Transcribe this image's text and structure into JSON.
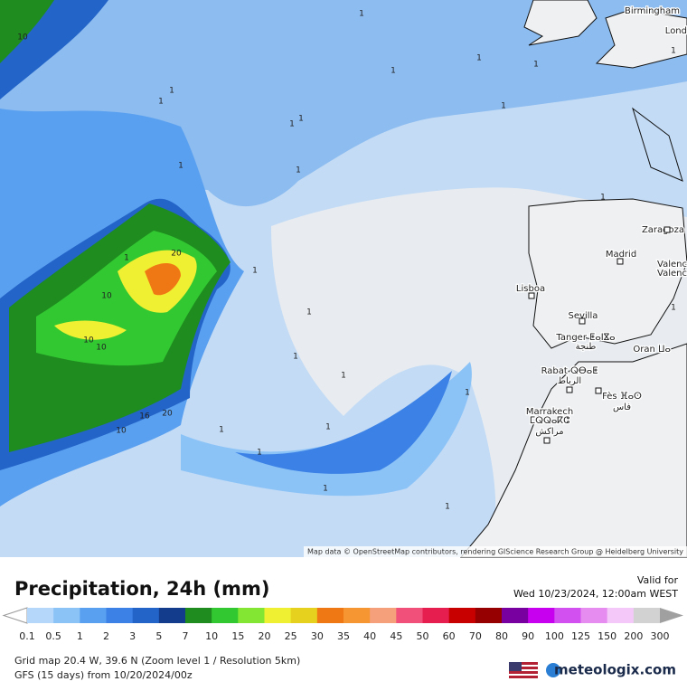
{
  "map": {
    "cities": [
      "Birmingham",
      "Lond",
      "Zaragoza",
      "Madrid",
      "Valenc",
      "Valenc",
      "Lisboa",
      "Sevilla",
      "Tanger ⵟⴰⵏⴵⴰ",
      "طنجة",
      "Oran ⵡⴰ",
      "Rabat ⵕⴱⴰⵟ",
      "الرباط",
      "Fès ⴼⴰⵙ",
      "فاس",
      "Marrakech",
      "ⵎⵕⵕⴰⴽⵛ",
      "مراكش"
    ],
    "contour_labels": [
      "10",
      "1",
      "1",
      "1",
      "1",
      "1",
      "1",
      "1",
      "1",
      "1",
      "1",
      "1",
      "1",
      "1",
      "1",
      "1",
      "1",
      "1",
      "1",
      "1",
      "1",
      "1",
      "1",
      "1",
      "20",
      "10",
      "10",
      "10",
      "20",
      "10",
      "16",
      "1",
      "1"
    ],
    "attribution": "Map data © OpenStreetMap contributors, rendering GIScience Research Group @ Heidelberg University"
  },
  "header": {
    "title": "Precipitation, 24h (mm)",
    "valid_label": "Valid for",
    "valid_time": "Wed 10/23/2024, 12:00am WEST"
  },
  "legend": {
    "labels": [
      "0.1",
      "0.5",
      "1",
      "2",
      "3",
      "5",
      "7",
      "10",
      "15",
      "20",
      "25",
      "30",
      "35",
      "40",
      "45",
      "50",
      "60",
      "70",
      "80",
      "90",
      "100",
      "125",
      "150",
      "200",
      "300"
    ],
    "colors": [
      "#ffffff",
      "#b4d7fa",
      "#8cc3f7",
      "#5aa0f0",
      "#3c82e6",
      "#2364c8",
      "#143c8c",
      "#1e8c1e",
      "#32c832",
      "#82e632",
      "#f0f032",
      "#e6d21e",
      "#f07814",
      "#f59632",
      "#f5a07a",
      "#f0507a",
      "#e61e50",
      "#c80000",
      "#960000",
      "#7800a0",
      "#c800f0",
      "#d250f0",
      "#e68cf0",
      "#f5c8fa",
      "#d2d2d2",
      "#a0a0a0"
    ]
  },
  "footer": {
    "grid_info": "Grid map 20.4 W, 39.6 N (Zoom level 1 / Resolution 5km)",
    "model_info": "GFS (15 days) from  10/20/2024/00z",
    "brand": "meteologix.com"
  }
}
